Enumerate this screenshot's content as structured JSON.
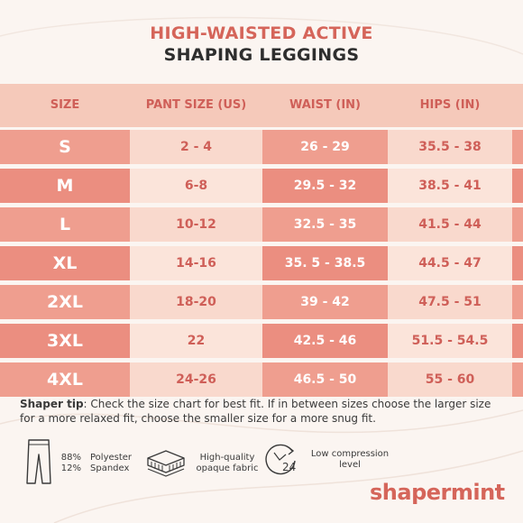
{
  "title": {
    "line1": "HIGH-WAISTED ACTIVE",
    "line2": "SHAPING LEGGINGS"
  },
  "table": {
    "headers": {
      "size": "SIZE",
      "pant": "PANT SIZE (US)",
      "waist": "WAIST (IN)",
      "hips": "HIPS (IN)"
    },
    "rows": [
      {
        "size": "S",
        "pant": "2 - 4",
        "waist": "26 - 29",
        "hips": "35.5 - 38"
      },
      {
        "size": "M",
        "pant": "6-8",
        "waist": "29.5 - 32",
        "hips": "38.5 - 41"
      },
      {
        "size": "L",
        "pant": "10-12",
        "waist": "32.5 - 35",
        "hips": "41.5 - 44"
      },
      {
        "size": "XL",
        "pant": "14-16",
        "waist": "35. 5 - 38.5",
        "hips": "44.5 - 47"
      },
      {
        "size": "2XL",
        "pant": "18-20",
        "waist": "39 - 42",
        "hips": "47.5 - 51"
      },
      {
        "size": "3XL",
        "pant": "22",
        "waist": "42.5 - 46",
        "hips": "51.5 - 54.5"
      },
      {
        "size": "4XL",
        "pant": "24-26",
        "waist": "46.5 - 50",
        "hips": "55 - 60"
      }
    ]
  },
  "tip": {
    "label": "Shaper tip",
    "text": ": Check the size chart for best fit. If in between sizes choose the larger size for a more relaxed fit, choose the smaller size for a more snug fit."
  },
  "features": {
    "material": {
      "pct1": "88%",
      "pct2": "12%",
      "mat1": "Polyester",
      "mat2": "Spandex"
    },
    "fabric": {
      "line1": "High-quality",
      "line2": "opaque fabric"
    },
    "compression": {
      "line1": "Low compression",
      "line2": "level"
    },
    "clock_number": "24"
  },
  "brand": "shapermint",
  "colors": {
    "accent": "#d5655a",
    "band_dark": "#ef9e8f",
    "band_light": "#f9d9cd",
    "header": "#f5c9ba"
  }
}
